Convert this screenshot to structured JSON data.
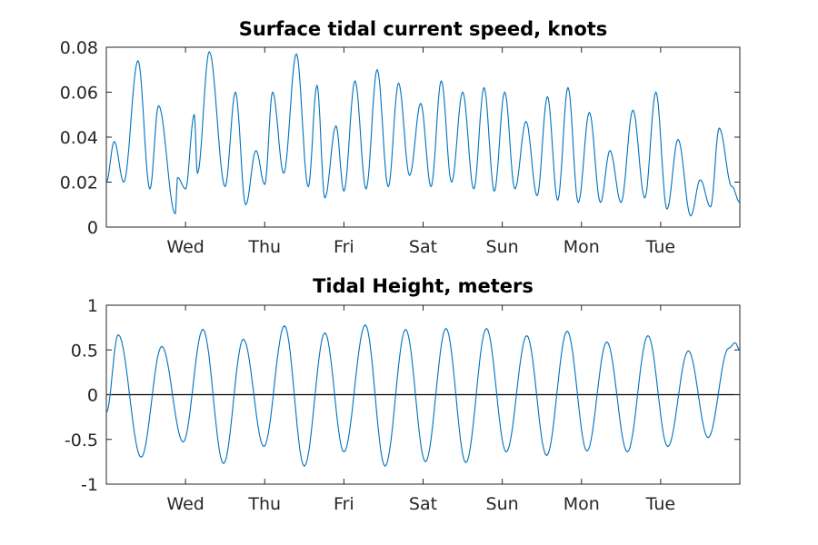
{
  "chart_data": [
    {
      "type": "line",
      "title": "Surface tidal current speed, knots",
      "xlabel": "",
      "ylabel": "",
      "x_unit": "days",
      "xlim": [
        0,
        8
      ],
      "ylim": [
        0,
        0.08
      ],
      "yticks": [
        0,
        0.02,
        0.04,
        0.06,
        0.08
      ],
      "ytick_labels": [
        "0",
        "0.02",
        "0.04",
        "0.06",
        "0.08"
      ],
      "xticks": [
        1,
        2,
        3,
        4,
        5,
        6,
        7
      ],
      "xtick_labels": [
        "Wed",
        "Thu",
        "Fri",
        "Sat",
        "Sun",
        "Mon",
        "Tue"
      ],
      "grid": false,
      "color": "#0072BD",
      "series": [
        {
          "x": [
            0,
            0.1,
            0.22,
            0.4,
            0.55,
            0.66,
            0.87,
            0.9,
            1.0,
            1.11,
            1.15,
            1.3,
            1.5,
            1.63,
            1.76,
            1.89,
            2.0,
            2.1,
            2.24,
            2.4,
            2.55,
            2.66,
            2.76,
            2.9,
            3.0,
            3.14,
            3.28,
            3.42,
            3.56,
            3.69,
            3.83,
            3.97,
            4.1,
            4.23,
            4.36,
            4.5,
            4.64,
            4.77,
            4.9,
            5.03,
            5.16,
            5.3,
            5.44,
            5.57,
            5.7,
            5.83,
            5.96,
            6.1,
            6.24,
            6.36,
            6.5,
            6.65,
            6.8,
            6.94,
            7.08,
            7.22,
            7.38,
            7.5,
            7.63,
            7.74,
            7.9,
            8.0
          ],
          "y": [
            0.02,
            0.038,
            0.02,
            0.074,
            0.017,
            0.054,
            0.006,
            0.022,
            0.017,
            0.05,
            0.024,
            0.078,
            0.018,
            0.06,
            0.01,
            0.034,
            0.019,
            0.06,
            0.024,
            0.077,
            0.018,
            0.063,
            0.013,
            0.045,
            0.016,
            0.065,
            0.017,
            0.07,
            0.018,
            0.064,
            0.023,
            0.055,
            0.018,
            0.065,
            0.02,
            0.06,
            0.017,
            0.062,
            0.016,
            0.06,
            0.017,
            0.047,
            0.014,
            0.058,
            0.012,
            0.062,
            0.011,
            0.051,
            0.011,
            0.034,
            0.011,
            0.052,
            0.013,
            0.06,
            0.008,
            0.039,
            0.005,
            0.021,
            0.009,
            0.044,
            0.018,
            0.011
          ]
        }
      ]
    },
    {
      "type": "line",
      "title": "Tidal Height, meters",
      "xlabel": "",
      "ylabel": "",
      "x_unit": "days",
      "xlim": [
        0,
        8
      ],
      "ylim": [
        -1,
        1
      ],
      "yticks": [
        -1,
        -0.5,
        0,
        0.5,
        1
      ],
      "ytick_labels": [
        "-1",
        "-0.5",
        "0",
        "0.5",
        "1"
      ],
      "xticks": [
        1,
        2,
        3,
        4,
        5,
        6,
        7
      ],
      "xtick_labels": [
        "Wed",
        "Thu",
        "Fri",
        "Sat",
        "Sun",
        "Mon",
        "Tue"
      ],
      "grid": false,
      "zero_line": true,
      "color": "#0072BD",
      "series": [
        {
          "x": [
            0,
            0.15,
            0.44,
            0.7,
            0.97,
            1.22,
            1.48,
            1.73,
            1.99,
            2.25,
            2.5,
            2.76,
            3.0,
            3.27,
            3.52,
            3.78,
            4.03,
            4.29,
            4.54,
            4.8,
            5.05,
            5.31,
            5.56,
            5.82,
            6.07,
            6.32,
            6.58,
            6.84,
            7.09,
            7.35,
            7.6,
            7.86,
            7.94,
            8.0
          ],
          "y": [
            -0.2,
            0.67,
            -0.7,
            0.54,
            -0.53,
            0.73,
            -0.77,
            0.62,
            -0.58,
            0.77,
            -0.8,
            0.69,
            -0.64,
            0.78,
            -0.8,
            0.73,
            -0.75,
            0.74,
            -0.76,
            0.74,
            -0.64,
            0.66,
            -0.68,
            0.71,
            -0.63,
            0.59,
            -0.64,
            0.66,
            -0.58,
            0.49,
            -0.48,
            0.52,
            0.58,
            0.5
          ]
        }
      ]
    }
  ]
}
